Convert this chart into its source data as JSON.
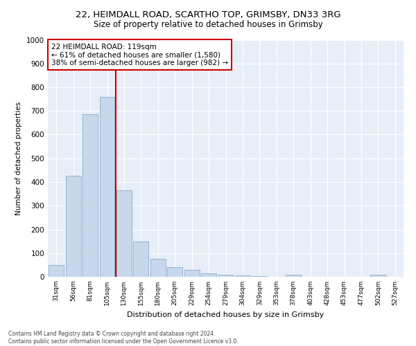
{
  "title_line1": "22, HEIMDALL ROAD, SCARTHO TOP, GRIMSBY, DN33 3RG",
  "title_line2": "Size of property relative to detached houses in Grimsby",
  "xlabel": "Distribution of detached houses by size in Grimsby",
  "ylabel": "Number of detached properties",
  "categories": [
    "31sqm",
    "56sqm",
    "81sqm",
    "105sqm",
    "130sqm",
    "155sqm",
    "180sqm",
    "205sqm",
    "229sqm",
    "254sqm",
    "279sqm",
    "304sqm",
    "329sqm",
    "353sqm",
    "378sqm",
    "403sqm",
    "428sqm",
    "453sqm",
    "477sqm",
    "502sqm",
    "527sqm"
  ],
  "values": [
    50,
    425,
    685,
    760,
    365,
    150,
    75,
    40,
    30,
    15,
    10,
    5,
    2,
    0,
    10,
    0,
    0,
    0,
    0,
    10,
    0
  ],
  "bar_color": "#c8d8ec",
  "bar_edge_color": "#8aadcc",
  "vline_x": 3.5,
  "vline_color": "#cc0000",
  "annotation_text": "22 HEIMDALL ROAD: 119sqm\n← 61% of detached houses are smaller (1,580)\n38% of semi-detached houses are larger (982) →",
  "annotation_box_color": "#ffffff",
  "annotation_box_edge": "#cc0000",
  "ylim": [
    0,
    1000
  ],
  "yticks": [
    0,
    100,
    200,
    300,
    400,
    500,
    600,
    700,
    800,
    900,
    1000
  ],
  "footnote": "Contains HM Land Registry data © Crown copyright and database right 2024.\nContains public sector information licensed under the Open Government Licence v3.0.",
  "plot_bg_color": "#e8eef8",
  "fig_bg_color": "#ffffff",
  "grid_color": "#ffffff"
}
